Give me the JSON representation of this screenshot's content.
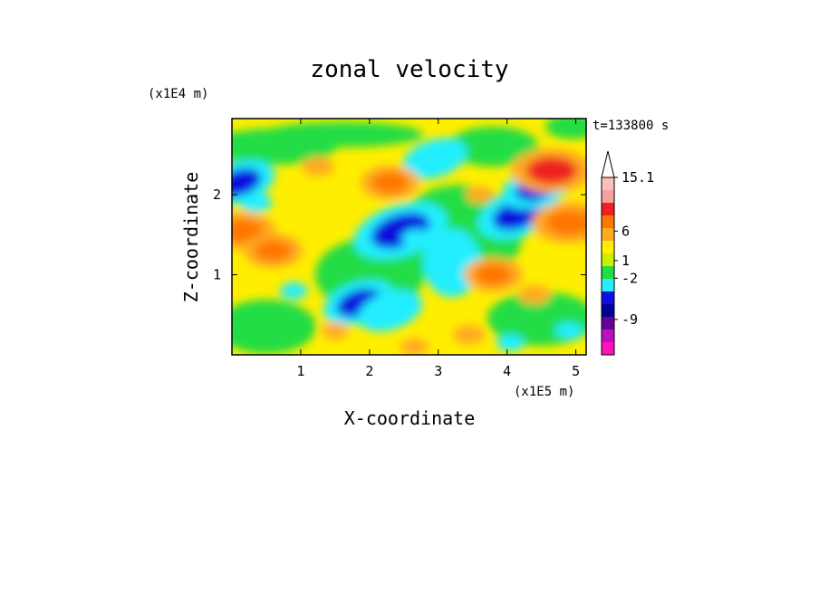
{
  "chart_data": {
    "type": "heatmap",
    "title": "zonal velocity",
    "xlabel": "X-coordinate",
    "ylabel": "Z-coordinate",
    "x_unit": "(x1E5 m)",
    "y_unit": "(x1E4 m)",
    "time_label": "t=133800 s",
    "xlim": [
      0,
      5.15
    ],
    "ylim": [
      0,
      2.95
    ],
    "x_ticks": [
      {
        "value": 1,
        "label": "1"
      },
      {
        "value": 2,
        "label": "2"
      },
      {
        "value": 3,
        "label": "3"
      },
      {
        "value": 4,
        "label": "4"
      },
      {
        "value": 5,
        "label": "5"
      }
    ],
    "y_ticks": [
      {
        "value": 1,
        "label": "1"
      },
      {
        "value": 2,
        "label": "2"
      }
    ],
    "colorbar": {
      "max_label": "15.1",
      "labeled_levels": [
        {
          "label": "15.1",
          "level": 15.1
        },
        {
          "label": "6",
          "level": 6
        },
        {
          "label": "1",
          "level": 1
        },
        {
          "label": "-2",
          "level": -2
        },
        {
          "label": "-9",
          "level": -9
        }
      ],
      "bands": [
        {
          "color": "#ffbebe"
        },
        {
          "color": "#f8a0a0"
        },
        {
          "color": "#ee2222"
        },
        {
          "color": "#ff7700"
        },
        {
          "color": "#ffaa22"
        },
        {
          "color": "#ffee00"
        },
        {
          "color": "#c8f000"
        },
        {
          "color": "#22dd44"
        },
        {
          "color": "#22eeff"
        },
        {
          "color": "#1010dd"
        },
        {
          "color": "#000099"
        },
        {
          "color": "#660099"
        },
        {
          "color": "#bb11bb"
        },
        {
          "color": "#ff11bb"
        }
      ]
    },
    "palette": {
      "strong_negative": "#1010dd",
      "negative": "#22eeff",
      "near_zero": "#22dd44",
      "weak_positive": "#ffee00",
      "positive": "#ffaa22",
      "strong_positive": "#ff7700",
      "very_strong_positive": "#ee2222"
    },
    "features": [
      {
        "x": 2.45,
        "z": 1.55,
        "u": -9
      },
      {
        "x": 4.15,
        "z": 1.75,
        "u": -7
      },
      {
        "x": 4.45,
        "z": 2.1,
        "u": -6
      },
      {
        "x": 2.95,
        "z": 2.45,
        "u": -5
      },
      {
        "x": 2.7,
        "z": 1.45,
        "u": -3
      },
      {
        "x": 3.15,
        "z": 1.1,
        "u": -2
      },
      {
        "x": 1.85,
        "z": 0.65,
        "u": -6
      },
      {
        "x": 2.3,
        "z": 0.55,
        "u": -5
      },
      {
        "x": 4.05,
        "z": 0.15,
        "u": -2
      },
      {
        "x": 4.9,
        "z": 0.3,
        "u": -2
      },
      {
        "x": 0.1,
        "z": 2.15,
        "u": -6
      },
      {
        "x": 0.35,
        "z": 1.9,
        "u": -3
      },
      {
        "x": 0.9,
        "z": 0.8,
        "u": -2
      },
      {
        "x": 4.9,
        "z": 1.65,
        "u": 6
      },
      {
        "x": 4.65,
        "z": 2.3,
        "u": 7
      },
      {
        "x": 3.8,
        "z": 1.0,
        "u": 4
      },
      {
        "x": 2.3,
        "z": 2.15,
        "u": 4
      },
      {
        "x": 0.15,
        "z": 1.55,
        "u": 5
      },
      {
        "x": 0.6,
        "z": 1.3,
        "u": 4
      },
      {
        "x": 1.25,
        "z": 2.35,
        "u": 3
      },
      {
        "x": 3.45,
        "z": 0.25,
        "u": 3
      },
      {
        "x": 2.65,
        "z": 0.1,
        "u": 2
      },
      {
        "x": 1.5,
        "z": 0.3,
        "u": 2
      },
      {
        "x": 4.4,
        "z": 0.75,
        "u": 3
      },
      {
        "x": 3.6,
        "z": 2.0,
        "u": 2
      }
    ]
  }
}
